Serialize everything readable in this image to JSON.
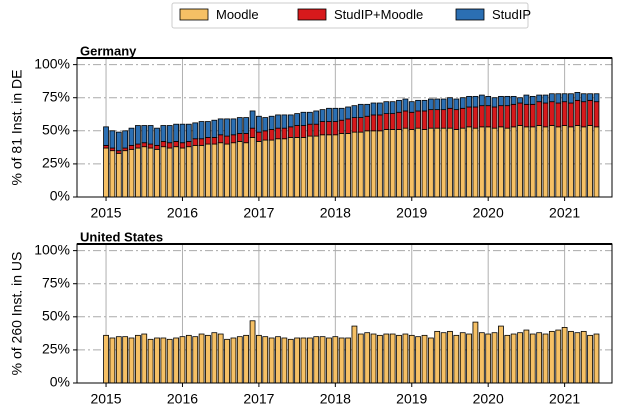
{
  "chart_data": [
    {
      "type": "bar",
      "stacked": true,
      "title": "Germany",
      "ylabel": "% of 81 Inst. in DE",
      "legend": "top",
      "grid": true,
      "xlim": [
        2014.62,
        2021.62
      ],
      "xticks": [
        2015,
        2016,
        2017,
        2018,
        2019,
        2020,
        2021
      ],
      "ylim": [
        0,
        105
      ],
      "yticks": [
        {
          "value": 0,
          "label": "0%"
        },
        {
          "value": 25,
          "label": "25%"
        },
        {
          "value": 50,
          "label": "50%"
        },
        {
          "value": 75,
          "label": "75%"
        },
        {
          "value": 100,
          "label": "100%"
        }
      ],
      "x": [
        2015,
        2015.083,
        2015.167,
        2015.25,
        2015.333,
        2015.417,
        2015.5,
        2015.583,
        2015.667,
        2015.75,
        2015.833,
        2015.917,
        2016,
        2016.083,
        2016.167,
        2016.25,
        2016.333,
        2016.417,
        2016.5,
        2016.583,
        2016.667,
        2016.75,
        2016.833,
        2016.917,
        2017,
        2017.083,
        2017.167,
        2017.25,
        2017.333,
        2017.417,
        2017.5,
        2017.583,
        2017.667,
        2017.75,
        2017.833,
        2017.917,
        2018,
        2018.083,
        2018.167,
        2018.25,
        2018.333,
        2018.417,
        2018.5,
        2018.583,
        2018.667,
        2018.75,
        2018.833,
        2018.917,
        2019,
        2019.083,
        2019.167,
        2019.25,
        2019.333,
        2019.417,
        2019.5,
        2019.583,
        2019.667,
        2019.75,
        2019.833,
        2019.917,
        2020,
        2020.083,
        2020.167,
        2020.25,
        2020.333,
        2020.417,
        2020.5,
        2020.583,
        2020.667,
        2020.75,
        2020.833,
        2020.917,
        2021,
        2021.083,
        2021.167,
        2021.25,
        2021.333,
        2021.417
      ],
      "series": [
        {
          "name": "Moodle",
          "color": "#f5c065",
          "values": [
            37,
            35,
            33,
            35,
            36,
            37,
            38,
            37,
            36,
            38,
            37,
            38,
            37,
            38,
            39,
            39,
            40,
            40,
            41,
            40,
            41,
            42,
            41,
            45,
            42,
            43,
            43,
            44,
            44,
            45,
            45,
            45,
            46,
            46,
            47,
            47,
            47,
            48,
            48,
            49,
            49,
            50,
            50,
            50,
            51,
            51,
            51,
            52,
            51,
            52,
            51,
            52,
            52,
            52,
            52,
            51,
            52,
            53,
            52,
            53,
            53,
            52,
            53,
            52,
            53,
            54,
            53,
            53,
            54,
            53,
            54,
            53,
            54,
            53,
            54,
            53,
            54,
            53
          ]
        },
        {
          "name": "StudIP+Moodle",
          "color": "#d7191c",
          "values": [
            2,
            2,
            2,
            2,
            3,
            3,
            3,
            3,
            3,
            4,
            4,
            4,
            4,
            4,
            5,
            5,
            5,
            5,
            6,
            6,
            6,
            6,
            7,
            7,
            7,
            7,
            8,
            8,
            8,
            8,
            9,
            9,
            9,
            9,
            10,
            10,
            10,
            10,
            11,
            11,
            11,
            11,
            12,
            12,
            12,
            12,
            13,
            13,
            13,
            13,
            14,
            14,
            14,
            14,
            15,
            15,
            15,
            15,
            16,
            16,
            16,
            16,
            16,
            17,
            17,
            17,
            17,
            17,
            18,
            18,
            18,
            18,
            18,
            18,
            19,
            19,
            19,
            19
          ]
        },
        {
          "name": "StudIP",
          "color": "#2b6fb3",
          "values": [
            14,
            13,
            14,
            13,
            13,
            14,
            13,
            14,
            13,
            12,
            13,
            13,
            14,
            13,
            12,
            13,
            12,
            13,
            12,
            13,
            12,
            12,
            12,
            13,
            12,
            10,
            10,
            10,
            10,
            9,
            9,
            10,
            9,
            10,
            9,
            10,
            10,
            9,
            9,
            9,
            10,
            9,
            9,
            9,
            9,
            9,
            9,
            9,
            8,
            8,
            8,
            8,
            8,
            8,
            8,
            8,
            8,
            8,
            8,
            8,
            7,
            7,
            7,
            7,
            6,
            4,
            7,
            6,
            5,
            6,
            6,
            7,
            6,
            7,
            6,
            6,
            5,
            6
          ]
        }
      ]
    },
    {
      "type": "bar",
      "stacked": true,
      "title": "United States",
      "ylabel": "% of 260 Inst. in US",
      "grid": true,
      "xlim": [
        2014.62,
        2021.62
      ],
      "xticks": [
        2015,
        2016,
        2017,
        2018,
        2019,
        2020,
        2021
      ],
      "ylim": [
        0,
        105
      ],
      "yticks": [
        {
          "value": 0,
          "label": "0%"
        },
        {
          "value": 25,
          "label": "25%"
        },
        {
          "value": 50,
          "label": "50%"
        },
        {
          "value": 75,
          "label": "75%"
        },
        {
          "value": 100,
          "label": "100%"
        }
      ],
      "x": [
        2015,
        2015.083,
        2015.167,
        2015.25,
        2015.333,
        2015.417,
        2015.5,
        2015.583,
        2015.667,
        2015.75,
        2015.833,
        2015.917,
        2016,
        2016.083,
        2016.167,
        2016.25,
        2016.333,
        2016.417,
        2016.5,
        2016.583,
        2016.667,
        2016.75,
        2016.833,
        2016.917,
        2017,
        2017.083,
        2017.167,
        2017.25,
        2017.333,
        2017.417,
        2017.5,
        2017.583,
        2017.667,
        2017.75,
        2017.833,
        2017.917,
        2018,
        2018.083,
        2018.167,
        2018.25,
        2018.333,
        2018.417,
        2018.5,
        2018.583,
        2018.667,
        2018.75,
        2018.833,
        2018.917,
        2019,
        2019.083,
        2019.167,
        2019.25,
        2019.333,
        2019.417,
        2019.5,
        2019.583,
        2019.667,
        2019.75,
        2019.833,
        2019.917,
        2020,
        2020.083,
        2020.167,
        2020.25,
        2020.333,
        2020.417,
        2020.5,
        2020.583,
        2020.667,
        2020.75,
        2020.833,
        2020.917,
        2021,
        2021.083,
        2021.167,
        2021.25,
        2021.333,
        2021.417
      ],
      "series": [
        {
          "color": "#f5c065",
          "values": [
            36,
            34,
            35,
            35,
            34,
            36,
            37,
            33,
            34,
            34,
            33,
            34,
            35,
            36,
            35,
            37,
            36,
            38,
            37,
            33,
            34,
            35,
            36,
            47,
            36,
            35,
            34,
            35,
            34,
            33,
            34,
            34,
            34,
            35,
            35,
            34,
            35,
            34,
            34,
            43,
            37,
            38,
            37,
            36,
            37,
            37,
            36,
            37,
            36,
            35,
            36,
            34,
            39,
            38,
            39,
            36,
            38,
            37,
            46,
            38,
            37,
            38,
            43,
            36,
            37,
            38,
            40,
            37,
            38,
            37,
            39,
            40,
            42,
            39,
            38,
            39,
            36,
            37
          ]
        }
      ]
    }
  ]
}
